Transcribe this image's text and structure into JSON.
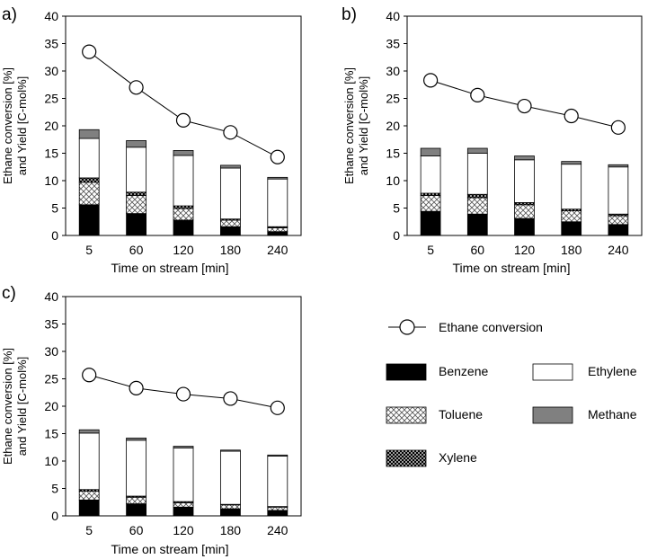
{
  "legend": {
    "conversion_label": "Ethane conversion",
    "items": [
      {
        "key": "benzene",
        "label": "Benzene"
      },
      {
        "key": "ethylene",
        "label": "Ethylene"
      },
      {
        "key": "toluene",
        "label": "Toluene"
      },
      {
        "key": "methane",
        "label": "Methane"
      },
      {
        "key": "xylene",
        "label": "Xylene"
      }
    ]
  },
  "chart_data": [
    {
      "panel": "a)",
      "type": "bar",
      "stacked": true,
      "xlabel": "Time on stream [min]",
      "ylabel_line1": "Ethane conversion [%]",
      "ylabel_line2": "and Yield [C-mol%]",
      "ylim": [
        0,
        40
      ],
      "yticks": [
        0,
        5,
        10,
        15,
        20,
        25,
        30,
        35,
        40
      ],
      "categories": [
        "5",
        "60",
        "120",
        "180",
        "240"
      ],
      "series": [
        {
          "name": "Benzene",
          "values": [
            5.6,
            4.0,
            2.8,
            1.6,
            0.7
          ]
        },
        {
          "name": "Toluene",
          "values": [
            4.1,
            3.3,
            2.1,
            1.2,
            0.7
          ]
        },
        {
          "name": "Xylene",
          "values": [
            0.8,
            0.6,
            0.5,
            0.2,
            0.2
          ]
        },
        {
          "name": "Ethylene",
          "values": [
            7.2,
            8.2,
            9.2,
            9.3,
            8.7
          ]
        },
        {
          "name": "Methane",
          "values": [
            1.6,
            1.2,
            0.9,
            0.5,
            0.3
          ]
        }
      ],
      "line": {
        "name": "Ethane conversion",
        "values": [
          33.5,
          27.0,
          21.0,
          18.8,
          14.3
        ]
      }
    },
    {
      "panel": "b)",
      "type": "bar",
      "stacked": true,
      "xlabel": "Time on stream [min]",
      "ylabel_line1": "Ethane conversion [%]",
      "ylabel_line2": "and Yield [C-mol%]",
      "ylim": [
        0,
        40
      ],
      "yticks": [
        0,
        5,
        10,
        15,
        20,
        25,
        30,
        35,
        40
      ],
      "categories": [
        "5",
        "60",
        "120",
        "180",
        "240"
      ],
      "series": [
        {
          "name": "Benzene",
          "values": [
            4.4,
            3.9,
            3.1,
            2.5,
            2.0
          ]
        },
        {
          "name": "Toluene",
          "values": [
            2.9,
            3.0,
            2.5,
            2.0,
            1.6
          ]
        },
        {
          "name": "Xylene",
          "values": [
            0.4,
            0.6,
            0.4,
            0.3,
            0.3
          ]
        },
        {
          "name": "Ethylene",
          "values": [
            6.8,
            7.5,
            7.8,
            8.2,
            8.6
          ]
        },
        {
          "name": "Methane",
          "values": [
            1.4,
            0.9,
            0.7,
            0.5,
            0.4
          ]
        }
      ],
      "line": {
        "name": "Ethane conversion",
        "values": [
          28.3,
          25.6,
          23.6,
          21.8,
          19.7
        ]
      }
    },
    {
      "panel": "c)",
      "type": "bar",
      "stacked": true,
      "xlabel": "Time on stream [min]",
      "ylabel_line1": "Ethane conversion [%]",
      "ylabel_line2": "and Yield [C-mol%]",
      "ylim": [
        0,
        40
      ],
      "yticks": [
        0,
        5,
        10,
        15,
        20,
        25,
        30,
        35,
        40
      ],
      "categories": [
        "5",
        "60",
        "120",
        "180",
        "240"
      ],
      "series": [
        {
          "name": "Benzene",
          "values": [
            2.9,
            2.2,
            1.6,
            1.3,
            1.0
          ]
        },
        {
          "name": "Toluene",
          "values": [
            1.6,
            1.2,
            0.8,
            0.7,
            0.6
          ]
        },
        {
          "name": "Xylene",
          "values": [
            0.3,
            0.2,
            0.2,
            0.1,
            0.1
          ]
        },
        {
          "name": "Ethylene",
          "values": [
            10.3,
            10.2,
            9.8,
            9.7,
            9.2
          ]
        },
        {
          "name": "Methane",
          "values": [
            0.6,
            0.4,
            0.3,
            0.2,
            0.2
          ]
        }
      ],
      "line": {
        "name": "Ethane conversion",
        "values": [
          25.7,
          23.3,
          22.2,
          21.4,
          19.7
        ]
      }
    }
  ]
}
